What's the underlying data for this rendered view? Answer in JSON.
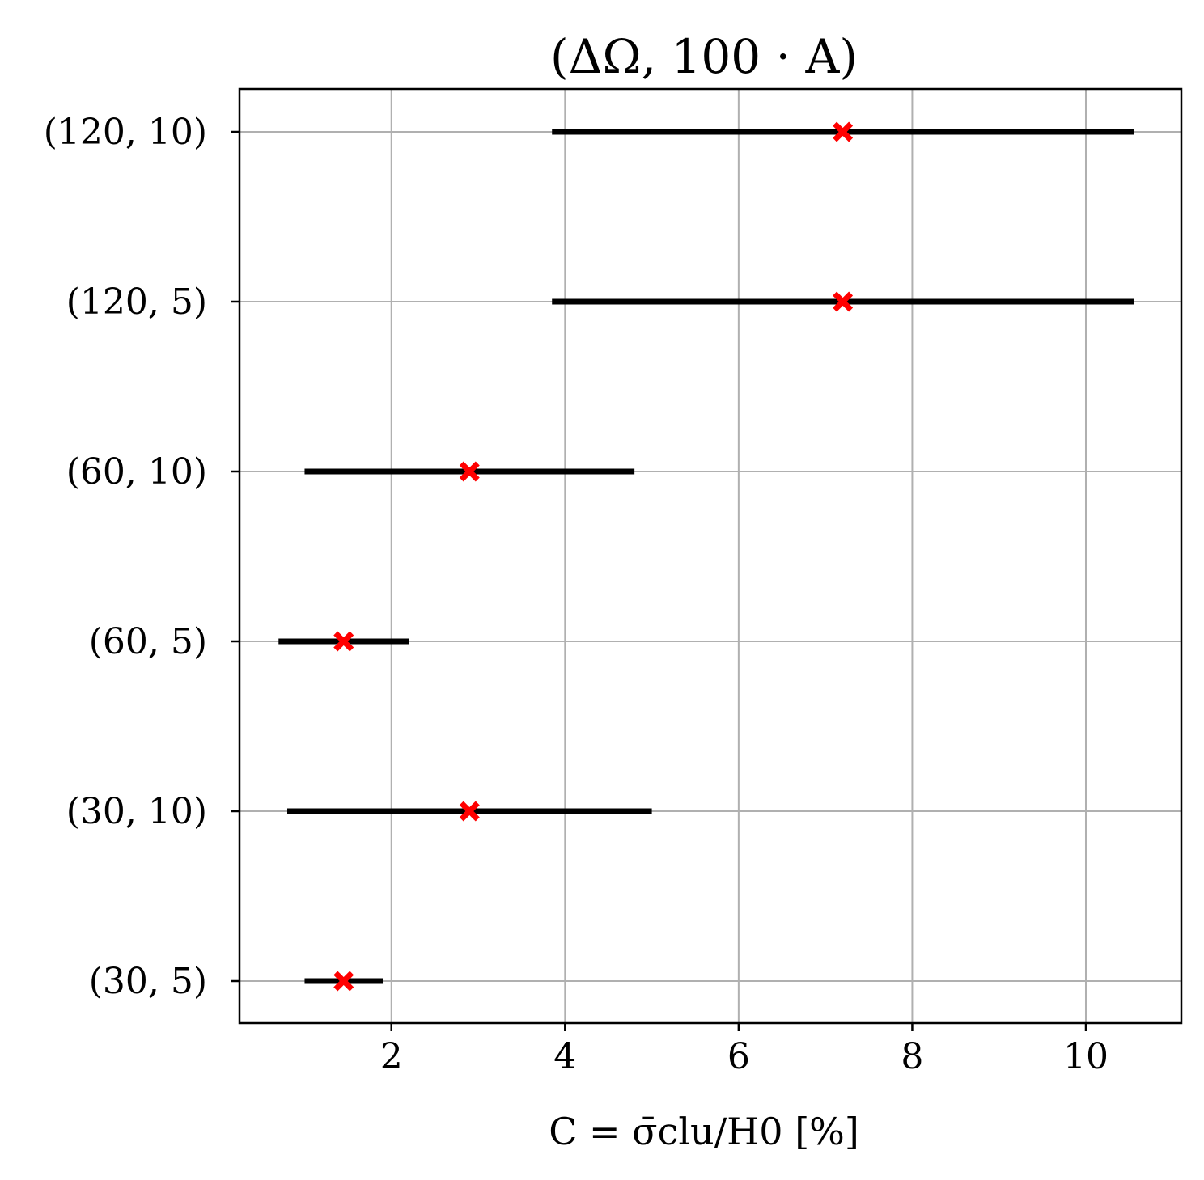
{
  "chart_data": {
    "type": "interval",
    "title": "(ΔΩ, 100 · A)",
    "xlabel": "C = σ̄clu/H0 [%]",
    "ylabel": "",
    "xlim": [
      0.25,
      11.1
    ],
    "xticks": [
      2,
      4,
      6,
      8,
      10
    ],
    "grid": true,
    "categories": [
      "(120, 10)",
      "(120, 5)",
      "(60, 10)",
      "(60, 5)",
      "(30, 10)",
      "(30, 5)"
    ],
    "intervals": [
      {
        "label": "(120, 10)",
        "low": 3.85,
        "high": 10.55,
        "point": 7.2
      },
      {
        "label": "(120, 5)",
        "low": 3.85,
        "high": 10.55,
        "point": 7.2
      },
      {
        "label": "(60, 10)",
        "low": 1.0,
        "high": 4.8,
        "point": 2.9
      },
      {
        "label": "(60, 5)",
        "low": 0.7,
        "high": 2.2,
        "point": 1.45
      },
      {
        "label": "(30, 10)",
        "low": 0.8,
        "high": 5.0,
        "point": 2.9
      },
      {
        "label": "(30, 5)",
        "low": 1.0,
        "high": 1.9,
        "point": 1.45
      }
    ],
    "colors": {
      "bar": "#000000",
      "marker": "#ff0000",
      "grid": "#b0b0b0"
    }
  }
}
